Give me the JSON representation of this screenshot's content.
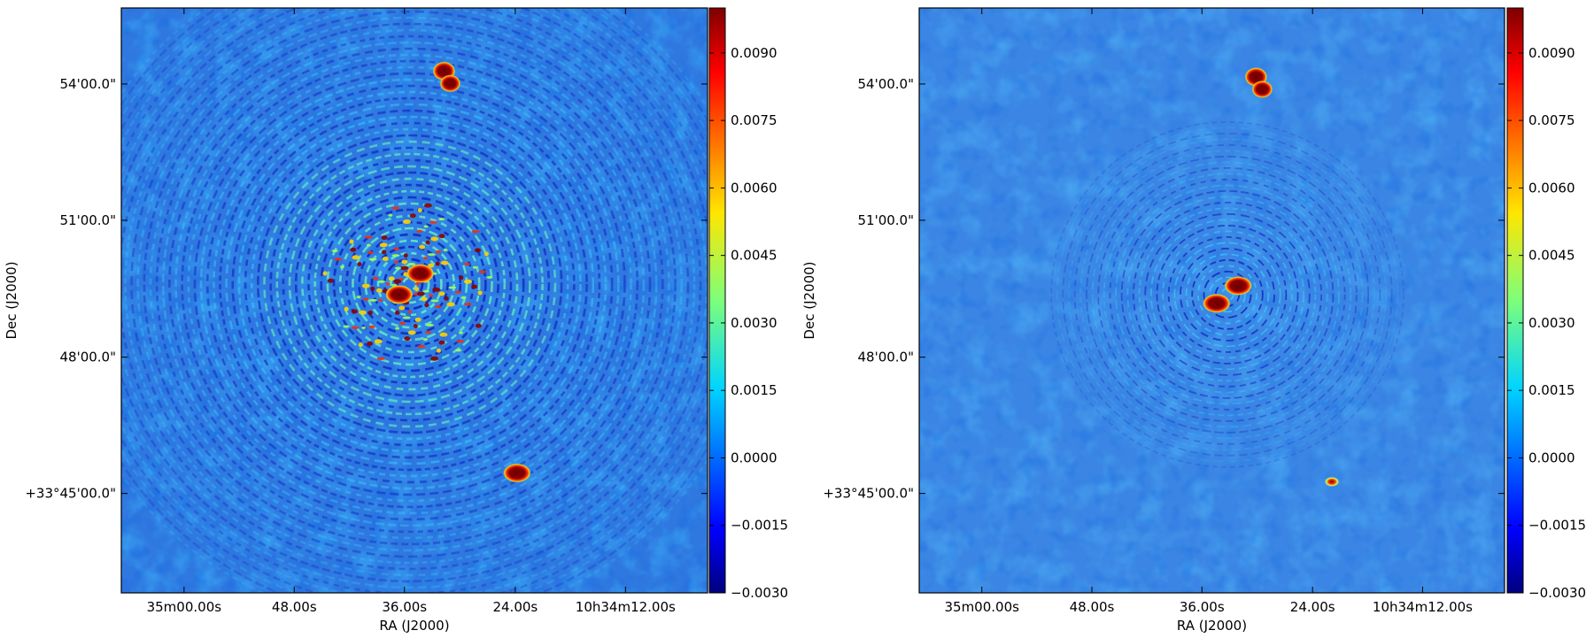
{
  "chart_data": [
    {
      "type": "heatmap",
      "panel": "left",
      "xlabel": "RA (J2000)",
      "ylabel": "Dec (J2000)",
      "x_ticks": [
        "35m00.00s",
        "48.00s",
        "36.00s",
        "24.00s",
        "10h34m12.00s"
      ],
      "y_ticks": [
        "54'00.0\"",
        "51'00.0\"",
        "48'00.0\"",
        "+33°45'00.0\""
      ],
      "colorbar": {
        "ticks": [
          "0.0090",
          "0.0075",
          "0.0060",
          "0.0045",
          "0.0030",
          "0.0015",
          "0.0000",
          "−0.0015",
          "−0.0030"
        ],
        "range": [
          -0.003,
          0.01
        ],
        "colormap": "jet"
      },
      "background": "#2f78e0",
      "ring_pattern": "strong",
      "sources": [
        {
          "name": "north-source",
          "ra_frac": 0.555,
          "dec_frac": 0.88,
          "peak": 0.01
        },
        {
          "name": "center-source-a",
          "ra_frac": 0.51,
          "dec_frac": 0.546,
          "peak": 0.01
        },
        {
          "name": "center-source-b",
          "ra_frac": 0.474,
          "dec_frac": 0.51,
          "peak": 0.01
        },
        {
          "name": "south-source",
          "ra_frac": 0.675,
          "dec_frac": 0.205,
          "peak": 0.01
        }
      ]
    },
    {
      "type": "heatmap",
      "panel": "right",
      "xlabel": "RA (J2000)",
      "ylabel": "Dec (J2000)",
      "x_ticks": [
        "35m00.00s",
        "48.00s",
        "36.00s",
        "24.00s",
        "10h34m12.00s"
      ],
      "y_ticks": [
        "54'00.0\"",
        "51'00.0\"",
        "48'00.0\"",
        "+33°45'00.0\""
      ],
      "colorbar": {
        "ticks": [
          "0.0090",
          "0.0075",
          "0.0060",
          "0.0045",
          "0.0030",
          "0.0015",
          "0.0000",
          "−0.0015",
          "−0.0030"
        ],
        "range": [
          -0.003,
          0.01
        ],
        "colormap": "jet"
      },
      "background": "#3b86e4",
      "ring_pattern": "weak",
      "sources": [
        {
          "name": "north-source",
          "ra_frac": 0.58,
          "dec_frac": 0.87,
          "peak": 0.01
        },
        {
          "name": "center-source-a",
          "ra_frac": 0.545,
          "dec_frac": 0.525,
          "peak": 0.01
        },
        {
          "name": "center-source-b",
          "ra_frac": 0.508,
          "dec_frac": 0.495,
          "peak": 0.01
        },
        {
          "name": "south-source",
          "ra_frac": 0.705,
          "dec_frac": 0.19,
          "peak": 0.004
        }
      ]
    }
  ]
}
